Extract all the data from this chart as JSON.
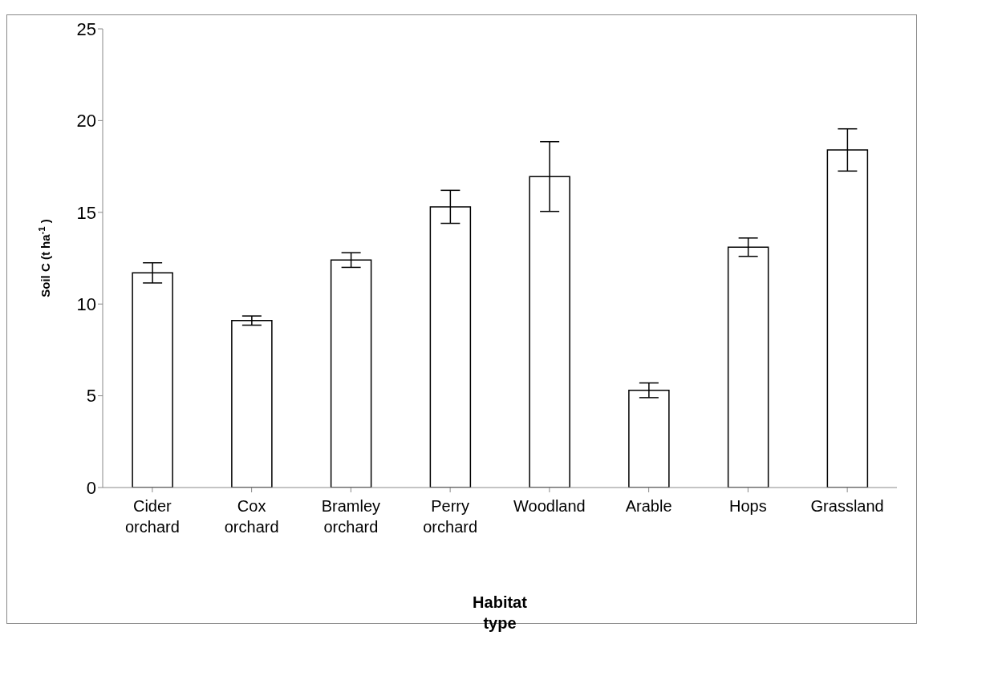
{
  "chart_data": {
    "type": "bar",
    "xlabel": "Habitat type",
    "ylabel": "Soil C (t ha$^{-1}$)",
    "categories": [
      "Cider orchard",
      "Cox orchard",
      "Bramley orchard",
      "Perry orchard",
      "Woodland",
      "Arable",
      "Hops",
      "Grassland"
    ],
    "values": [
      11.7,
      9.1,
      12.4,
      15.3,
      16.95,
      5.3,
      13.1,
      18.4
    ],
    "errors": [
      0.55,
      0.25,
      0.4,
      0.9,
      1.9,
      0.4,
      0.5,
      1.15
    ],
    "color": "#ffffff",
    "ylim": [
      0,
      25
    ],
    "yticks": [
      0,
      5,
      10,
      15,
      20,
      25
    ],
    "grid": false
  }
}
